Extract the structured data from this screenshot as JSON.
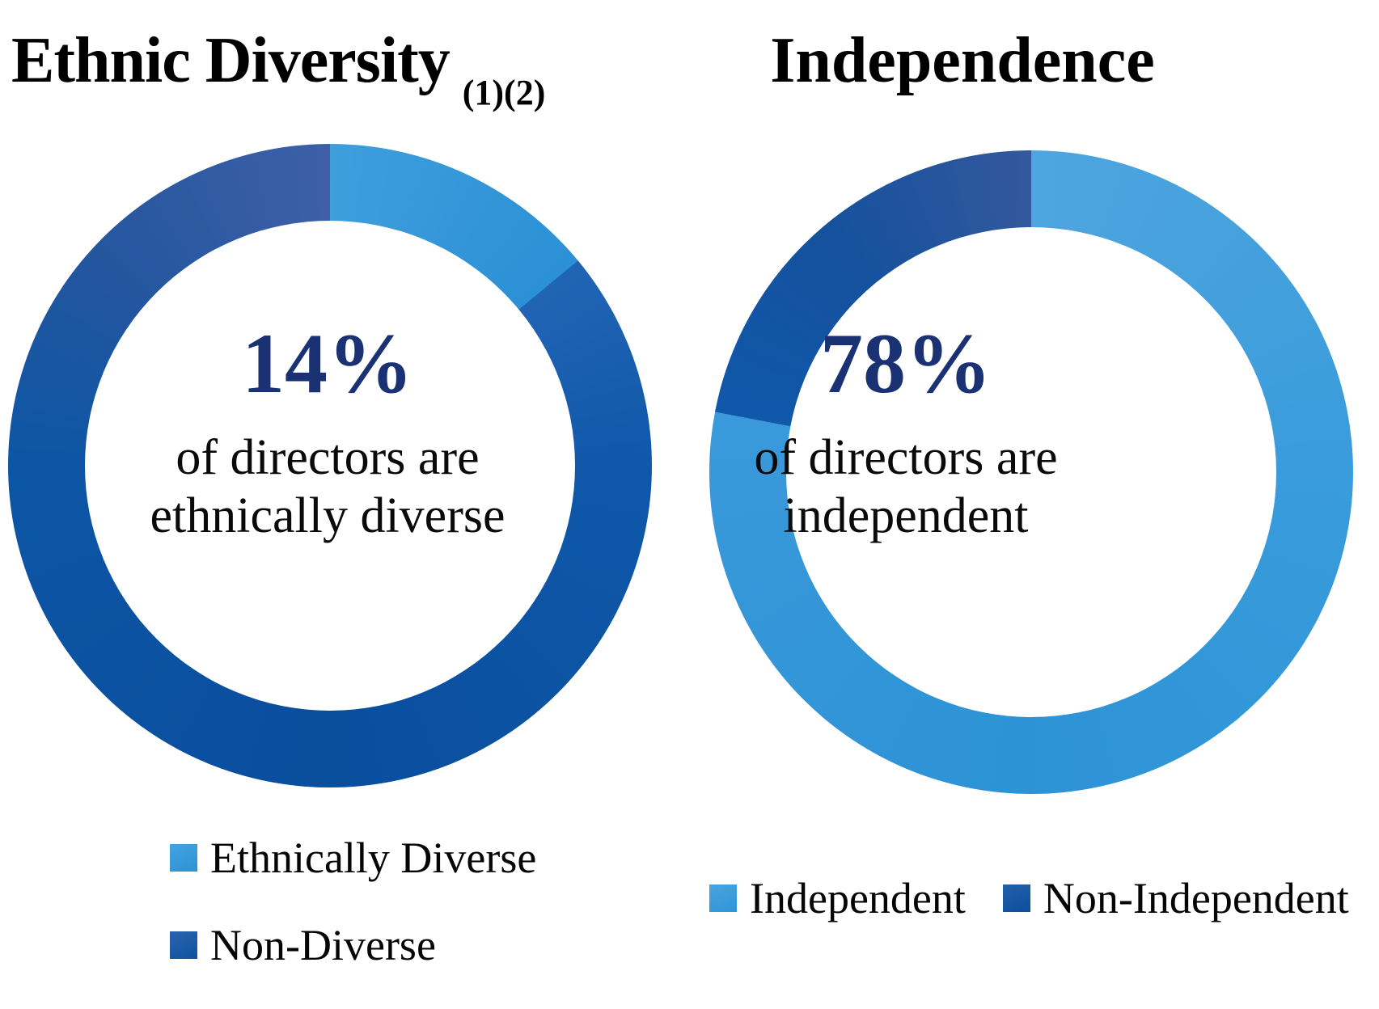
{
  "charts": [
    {
      "title": "Ethnic Diversity",
      "note": "(1)(2)",
      "center": {
        "value": "14%",
        "line1": "of directors are",
        "line2": "ethnically diverse"
      },
      "legend": [
        {
          "label": "Ethnically Diverse",
          "swatch": [
            "#45A2DF",
            "#2C93D7"
          ]
        },
        {
          "label": "Non-Diverse",
          "swatch": [
            "#2B63AC",
            "#0E53A2"
          ]
        }
      ]
    },
    {
      "title": "Independence",
      "note": "",
      "center": {
        "value": "78%",
        "line1": "of directors are",
        "line2": "independent"
      },
      "legend": [
        {
          "label": "Independent",
          "swatch": [
            "#4BA3DE",
            "#2F95D8"
          ]
        },
        {
          "label": "Non-Independent",
          "swatch": [
            "#2160AA",
            "#0D4F9D"
          ]
        }
      ]
    }
  ],
  "chart_data": [
    {
      "type": "pie",
      "subtype": "donut",
      "title": "Ethnic Diversity (1)(2)",
      "categories": [
        "Ethnically Diverse",
        "Non-Diverse"
      ],
      "values": [
        14,
        86
      ],
      "unit": "%",
      "center_label": "14% of directors are ethnically diverse",
      "start_angle_deg": 0,
      "direction": "clockwise",
      "hole_ratio": 0.76,
      "legend_position": "bottom-left, stacked vertically",
      "segments": [
        {
          "name": "Ethnically Diverse",
          "value": 14,
          "stops": [
            [
              0,
              "#3F9EDC"
            ],
            [
              1,
              "#2B90D6"
            ]
          ]
        },
        {
          "name": "Non-Diverse",
          "value": 86,
          "stops": [
            [
              0,
              "#2264B4"
            ],
            [
              0.13,
              "#0F58A9"
            ],
            [
              0.42,
              "#0A4E9E"
            ],
            [
              0.71,
              "#0D56A5"
            ],
            [
              0.84,
              "#23569E"
            ],
            [
              1,
              "#3E5FA8"
            ]
          ]
        }
      ]
    },
    {
      "type": "pie",
      "subtype": "donut",
      "title": "Independence",
      "categories": [
        "Independent",
        "Non-Independent"
      ],
      "values": [
        78,
        22
      ],
      "unit": "%",
      "center_label": "78% of directors are independent",
      "start_angle_deg": 0,
      "direction": "clockwise",
      "hole_ratio": 0.76,
      "legend_position": "bottom, horizontal row",
      "segments": [
        {
          "name": "Independent",
          "value": 78,
          "stops": [
            [
              0,
              "#4FA5DF"
            ],
            [
              0.35,
              "#389BDB"
            ],
            [
              0.65,
              "#2C93D6"
            ],
            [
              1,
              "#3A99DA"
            ]
          ]
        },
        {
          "name": "Non-Independent",
          "value": 22,
          "stops": [
            [
              0,
              "#0F58AA"
            ],
            [
              0.5,
              "#16519D"
            ],
            [
              1,
              "#33589D"
            ]
          ]
        }
      ]
    }
  ]
}
